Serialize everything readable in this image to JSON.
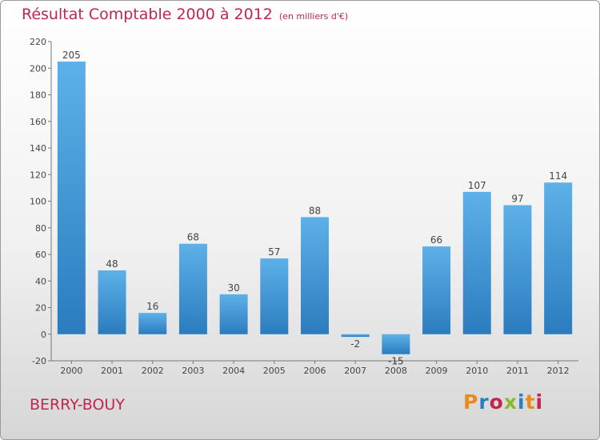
{
  "chart_data": {
    "type": "bar",
    "title": "Résultat Comptable 2000 à 2012",
    "unit_note": "(en milliers d'€)",
    "categories": [
      "2000",
      "2001",
      "2002",
      "2003",
      "2004",
      "2005",
      "2006",
      "2007",
      "2008",
      "2009",
      "2010",
      "2011",
      "2012"
    ],
    "values": [
      205,
      48,
      16,
      68,
      30,
      57,
      88,
      -2,
      -15,
      66,
      107,
      97,
      114
    ],
    "ylim": [
      -20,
      220
    ],
    "yticks": [
      -20,
      0,
      20,
      40,
      60,
      80,
      100,
      120,
      140,
      160,
      180,
      200,
      220
    ],
    "xlabel": "",
    "ylabel": "",
    "grid": false,
    "bar_color": "#3d96d4"
  },
  "footer": {
    "commune": "BERRY-BOUY",
    "logo": "Proxiti"
  },
  "colors": {
    "title": "#c0264e",
    "logo_letters": [
      "#e88a1d",
      "#2a7fc1",
      "#c0264e",
      "#8aba2b",
      "#2a7fc1",
      "#e88a1d",
      "#c0264e"
    ]
  }
}
